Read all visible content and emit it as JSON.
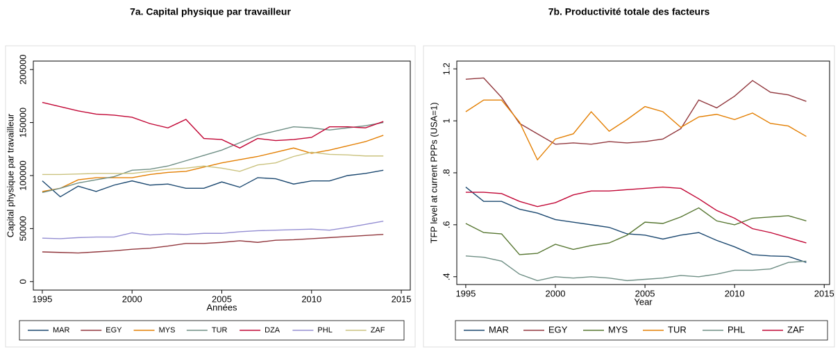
{
  "chart_data": [
    {
      "type": "line",
      "title": "7a. Capital physique par travailleur",
      "x_label": "Années",
      "y_label": "Capital physique par travailleur",
      "x": [
        1995,
        1996,
        1997,
        1998,
        1999,
        2000,
        2001,
        2002,
        2003,
        2004,
        2005,
        2006,
        2007,
        2008,
        2009,
        2010,
        2011,
        2012,
        2013,
        2014
      ],
      "xlim": [
        1994.5,
        2015.5
      ],
      "xticks": [
        1995,
        2000,
        2005,
        2010,
        2015
      ],
      "ylim": [
        -8000,
        208000
      ],
      "yticks": [
        0,
        50000,
        100000,
        150000,
        200000
      ],
      "grid": false,
      "series": [
        {
          "name": "MAR",
          "color": "#1a476f",
          "values": [
            95000,
            80000,
            90000,
            85000,
            91000,
            95000,
            91000,
            92000,
            88000,
            88000,
            94000,
            89000,
            98000,
            97000,
            92000,
            95000,
            95000,
            100000,
            102000,
            105000
          ]
        },
        {
          "name": "EGY",
          "color": "#90353b",
          "values": [
            28000,
            27500,
            27000,
            28000,
            29000,
            30500,
            31500,
            33500,
            36000,
            36000,
            37000,
            38500,
            37000,
            39000,
            39500,
            40500,
            41500,
            42500,
            43500,
            44500
          ]
        },
        {
          "name": "MYS",
          "color": "#e37e00",
          "values": [
            85000,
            88000,
            96000,
            98000,
            98000,
            98000,
            101000,
            103000,
            104000,
            108000,
            112000,
            115000,
            118000,
            122000,
            126000,
            121000,
            124000,
            128000,
            132000,
            138000
          ]
        },
        {
          "name": "TUR",
          "color": "#6e8e84",
          "values": [
            84000,
            88000,
            93000,
            96000,
            99000,
            105000,
            106000,
            109000,
            114000,
            119000,
            124000,
            131000,
            138000,
            142000,
            146000,
            145000,
            143000,
            145000,
            147000,
            150000
          ]
        },
        {
          "name": "DZA",
          "color": "#c10534",
          "values": [
            169000,
            165000,
            161000,
            158000,
            157000,
            155000,
            149000,
            145000,
            153000,
            135000,
            134000,
            126000,
            135000,
            133000,
            134000,
            136000,
            146000,
            146000,
            145000,
            151000
          ]
        },
        {
          "name": "PHL",
          "color": "#938dd2",
          "values": [
            41000,
            40500,
            41500,
            42000,
            42000,
            46000,
            44000,
            45000,
            44500,
            45500,
            45500,
            47000,
            48000,
            48500,
            49000,
            49500,
            48500,
            51000,
            54000,
            57000
          ]
        },
        {
          "name": "ZAF",
          "color": "#cac27e",
          "values": [
            101000,
            101000,
            101500,
            102000,
            102000,
            102000,
            104000,
            106000,
            107000,
            109000,
            107000,
            104000,
            110000,
            112000,
            118000,
            122000,
            120000,
            119500,
            118500,
            118500
          ]
        }
      ]
    },
    {
      "type": "line",
      "title": "7b. Productivité totale des facteurs",
      "x_label": "Year",
      "y_label": "TFP level at current PPPs (USA=1)",
      "x": [
        1995,
        1996,
        1997,
        1998,
        1999,
        2000,
        2001,
        2002,
        2003,
        2004,
        2005,
        2006,
        2007,
        2008,
        2009,
        2010,
        2011,
        2012,
        2013,
        2014
      ],
      "xlim": [
        1994.5,
        2015.3
      ],
      "xticks": [
        1995,
        2000,
        2005,
        2010,
        2015
      ],
      "ylim": [
        0.37,
        1.23
      ],
      "yticks": [
        {
          "value": 0.4,
          "label": ".4"
        },
        {
          "value": 0.6,
          "label": ".6"
        },
        {
          "value": 0.8,
          "label": ".8"
        },
        1,
        1.2
      ],
      "grid": false,
      "series": [
        {
          "name": "MAR",
          "color": "#1a476f",
          "values": [
            0.745,
            0.69,
            0.69,
            0.66,
            0.645,
            0.62,
            0.61,
            0.6,
            0.59,
            0.565,
            0.56,
            0.545,
            0.56,
            0.57,
            0.54,
            0.515,
            0.485,
            0.48,
            0.478,
            0.455
          ]
        },
        {
          "name": "EGY",
          "color": "#90353b",
          "values": [
            1.16,
            1.165,
            1.09,
            0.99,
            0.95,
            0.91,
            0.915,
            0.91,
            0.92,
            0.915,
            0.92,
            0.93,
            0.97,
            1.08,
            1.05,
            1.095,
            1.155,
            1.11,
            1.1,
            1.075
          ]
        },
        {
          "name": "MYS",
          "color": "#55752f",
          "values": [
            0.605,
            0.57,
            0.565,
            0.485,
            0.49,
            0.525,
            0.505,
            0.52,
            0.53,
            0.56,
            0.61,
            0.605,
            0.63,
            0.665,
            0.615,
            0.6,
            0.625,
            0.63,
            0.635,
            0.615
          ]
        },
        {
          "name": "TUR",
          "color": "#e37e00",
          "values": [
            1.035,
            1.08,
            1.08,
            0.995,
            0.85,
            0.93,
            0.95,
            1.035,
            0.96,
            1.005,
            1.055,
            1.035,
            0.975,
            1.015,
            1.025,
            1.005,
            1.03,
            0.99,
            0.98,
            0.94
          ]
        },
        {
          "name": "PHL",
          "color": "#6e8e84",
          "values": [
            0.48,
            0.475,
            0.46,
            0.41,
            0.385,
            0.4,
            0.395,
            0.4,
            0.395,
            0.385,
            0.39,
            0.395,
            0.405,
            0.4,
            0.41,
            0.425,
            0.425,
            0.43,
            0.455,
            0.46
          ]
        },
        {
          "name": "ZAF",
          "color": "#c10534",
          "values": [
            0.725,
            0.725,
            0.72,
            0.69,
            0.67,
            0.685,
            0.715,
            0.73,
            0.73,
            0.735,
            0.74,
            0.745,
            0.74,
            0.7,
            0.655,
            0.625,
            0.585,
            0.57,
            0.55,
            0.53
          ]
        }
      ]
    }
  ]
}
